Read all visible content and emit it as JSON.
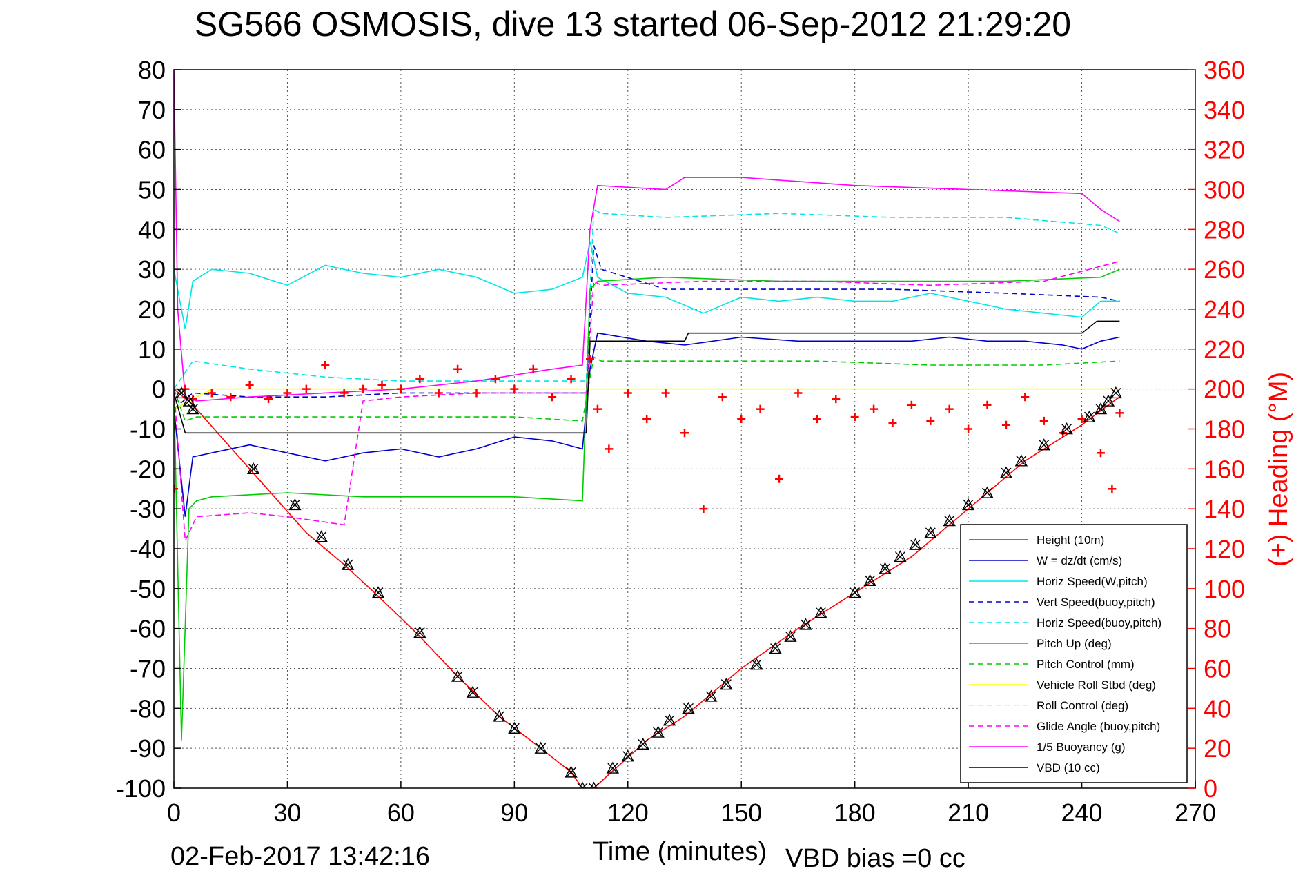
{
  "chart_data": {
    "type": "line",
    "title": "SG566 OSMOSIS, dive 13 started 06-Sep-2012 21:29:20",
    "xlabel": "Time (minutes)",
    "ylabel": "",
    "ylabel_right": "(+) Heading (°M)",
    "xlim": [
      0,
      270
    ],
    "ylim": [
      -100,
      80
    ],
    "ylim_right": [
      0,
      360
    ],
    "xticks": [
      "0",
      "30",
      "60",
      "90",
      "120",
      "150",
      "180",
      "210",
      "240",
      "270"
    ],
    "yticks": [
      "80",
      "70",
      "60",
      "50",
      "40",
      "30",
      "20",
      "10",
      "0",
      "-10",
      "-20",
      "-30",
      "-40",
      "-50",
      "-60",
      "-70",
      "-80",
      "-90",
      "-100"
    ],
    "yticks_right": [
      "360",
      "340",
      "320",
      "300",
      "280",
      "260",
      "240",
      "220",
      "200",
      "180",
      "160",
      "140",
      "120",
      "100",
      "80",
      "60",
      "40",
      "20",
      "0"
    ],
    "grid": true,
    "legend_position": "bottom-right",
    "footer_left": "02-Feb-2017 13:42:16",
    "footer_right": "VBD bias =0 cc",
    "colors": {
      "red": "#ff0000",
      "blue": "#0000cc",
      "cyan": "#00e5e5",
      "green": "#00cc00",
      "yellow": "#ffff00",
      "magenta": "#ff00ff",
      "black": "#000000",
      "right_axis": "#ff0000"
    },
    "series": [
      {
        "name": "Height (10m)",
        "color": "red",
        "style": "solid",
        "x": [
          0,
          5,
          20,
          35,
          45,
          53,
          64,
          75,
          86,
          97,
          105,
          108,
          111,
          118,
          125,
          135,
          150,
          165,
          180,
          195,
          210,
          225,
          240,
          247,
          250
        ],
        "y": [
          0,
          -4,
          -20,
          -36,
          -44,
          -51,
          -61,
          -72,
          -82,
          -90,
          -96,
          -100,
          -100,
          -94,
          -88,
          -82,
          -70,
          -60,
          -51,
          -42,
          -30,
          -18,
          -9,
          -4,
          -2
        ]
      },
      {
        "name": "W = dz/dt (cm/s)",
        "color": "blue",
        "style": "solid",
        "x": [
          0,
          3,
          5,
          10,
          20,
          30,
          40,
          50,
          60,
          70,
          80,
          90,
          100,
          108,
          110,
          112,
          125,
          135,
          150,
          165,
          180,
          195,
          205,
          215,
          225,
          235,
          240,
          245,
          250
        ],
        "y": [
          -5,
          -32,
          -17,
          -16,
          -14,
          -16,
          -18,
          -16,
          -15,
          -17,
          -15,
          -12,
          -13,
          -15,
          5,
          14,
          12,
          11,
          13,
          12,
          12,
          12,
          13,
          12,
          12,
          11,
          10,
          12,
          13
        ]
      },
      {
        "name": "Horiz Speed(W,pitch)",
        "color": "cyan",
        "style": "solid",
        "x": [
          0,
          3,
          5,
          10,
          20,
          30,
          40,
          50,
          60,
          70,
          80,
          90,
          100,
          108,
          110,
          112,
          120,
          130,
          140,
          150,
          160,
          170,
          180,
          190,
          200,
          210,
          220,
          230,
          240,
          245,
          250
        ],
        "y": [
          30,
          15,
          27,
          30,
          29,
          26,
          31,
          29,
          28,
          30,
          28,
          24,
          25,
          28,
          37,
          28,
          24,
          23,
          19,
          23,
          22,
          23,
          22,
          22,
          24,
          22,
          20,
          19,
          18,
          22,
          22
        ]
      },
      {
        "name": "Vert Speed(buoy,pitch)",
        "color": "blue",
        "style": "dashed",
        "x": [
          0,
          5,
          20,
          40,
          60,
          80,
          100,
          109,
          111,
          113,
          130,
          160,
          190,
          220,
          245,
          250
        ],
        "y": [
          -5,
          -1,
          -2,
          -2,
          -1,
          -1,
          -1,
          -1,
          36,
          30,
          25,
          25,
          25,
          24,
          23,
          22
        ]
      },
      {
        "name": "Horiz Speed(buoy,pitch)",
        "color": "cyan",
        "style": "dashed",
        "x": [
          0,
          5,
          20,
          40,
          60,
          80,
          100,
          109,
          111,
          113,
          130,
          160,
          190,
          220,
          245,
          250
        ],
        "y": [
          0,
          7,
          5,
          3,
          2,
          2,
          2,
          2,
          45,
          44,
          43,
          44,
          43,
          43,
          41,
          39
        ]
      },
      {
        "name": "Pitch Up (deg)",
        "color": "green",
        "style": "solid",
        "x": [
          0,
          2,
          4,
          6,
          10,
          30,
          50,
          70,
          90,
          108,
          110,
          112,
          130,
          160,
          190,
          220,
          245,
          250
        ],
        "y": [
          0,
          -88,
          -30,
          -28,
          -27,
          -26,
          -27,
          -27,
          -27,
          -28,
          25,
          27,
          28,
          27,
          27,
          27,
          28,
          30
        ]
      },
      {
        "name": "Pitch Control (mm)",
        "color": "green",
        "style": "dashed",
        "x": [
          0,
          3,
          6,
          30,
          60,
          90,
          108,
          111,
          113,
          140,
          170,
          200,
          230,
          250
        ],
        "y": [
          0,
          -8,
          -7,
          -7,
          -7,
          -7,
          -8,
          8,
          7,
          7,
          7,
          6,
          6,
          7
        ]
      },
      {
        "name": "Vehicle Roll Stbd (deg)",
        "color": "yellow",
        "style": "solid",
        "x": [
          0,
          10,
          20,
          30,
          40,
          50,
          60,
          70,
          80,
          90,
          100,
          110,
          120,
          130,
          140,
          150,
          160,
          170,
          180,
          190,
          200,
          210,
          220,
          230,
          240,
          250
        ],
        "y": [
          -5,
          0,
          0,
          0,
          0,
          0,
          0,
          0,
          0,
          0,
          0,
          0,
          0,
          0,
          0,
          0,
          0,
          0,
          0,
          0,
          0,
          0,
          0,
          0,
          0,
          0
        ]
      },
      {
        "name": "Roll Control (deg)",
        "color": "yellow",
        "style": "dashed",
        "x": [
          0,
          10,
          20,
          30,
          40,
          50,
          60,
          70,
          80,
          90,
          100,
          110,
          120,
          130,
          140,
          150,
          160,
          170,
          180,
          190,
          200,
          210,
          220,
          230,
          240,
          250
        ],
        "y": [
          0,
          0,
          0,
          0,
          0,
          0,
          0,
          0,
          0,
          0,
          0,
          0,
          0,
          0,
          0,
          0,
          0,
          0,
          0,
          0,
          0,
          0,
          0,
          0,
          0,
          0
        ]
      },
      {
        "name": "Glide Angle (buoy,pitch)",
        "color": "magenta",
        "style": "dashed",
        "x": [
          0,
          3,
          6,
          20,
          30,
          45,
          50,
          60,
          80,
          100,
          109,
          111,
          113,
          140,
          170,
          200,
          230,
          250
        ],
        "y": [
          0,
          -38,
          -32,
          -31,
          -32,
          -34,
          -3,
          -2,
          -1,
          -1,
          -1,
          27,
          26,
          27,
          27,
          26,
          27,
          32
        ]
      },
      {
        "name": "1/5 Buoyancy (g)",
        "color": "magenta",
        "style": "solid",
        "x": [
          0,
          1,
          3,
          6,
          20,
          40,
          60,
          80,
          100,
          108,
          110,
          112,
          130,
          135,
          150,
          180,
          210,
          240,
          245,
          250
        ],
        "y": [
          80,
          20,
          -2,
          -3,
          -2,
          -1,
          0,
          2,
          5,
          6,
          40,
          51,
          50,
          53,
          53,
          51,
          50,
          49,
          45,
          42
        ]
      },
      {
        "name": "VBD (10 cc)",
        "color": "black",
        "style": "solid",
        "x": [
          0,
          3,
          5,
          30,
          60,
          90,
          109,
          110,
          111,
          135,
          136,
          170,
          210,
          240,
          244,
          250
        ],
        "y": [
          -1,
          -11,
          -11,
          -11,
          -11,
          -11,
          -11,
          12,
          12,
          12,
          14,
          14,
          14,
          14,
          17,
          17
        ]
      },
      {
        "name": "Heading",
        "color": "red",
        "style": "markers",
        "axis": "right",
        "x": [
          0,
          3,
          5,
          10,
          15,
          20,
          25,
          30,
          35,
          40,
          45,
          50,
          55,
          60,
          65,
          70,
          75,
          80,
          85,
          90,
          95,
          100,
          105,
          110,
          112,
          115,
          120,
          125,
          130,
          135,
          140,
          145,
          150,
          155,
          160,
          165,
          170,
          175,
          180,
          185,
          190,
          195,
          200,
          205,
          210,
          215,
          220,
          225,
          230,
          235,
          240,
          245,
          248,
          250
        ],
        "y": [
          150,
          200,
          195,
          198,
          196,
          202,
          195,
          198,
          200,
          212,
          198,
          200,
          202,
          200,
          205,
          198,
          210,
          198,
          205,
          200,
          210,
          196,
          205,
          215,
          190,
          170,
          198,
          185,
          198,
          178,
          140,
          196,
          185,
          190,
          155,
          198,
          185,
          195,
          186,
          190,
          183,
          192,
          184,
          190,
          180,
          192,
          182,
          196,
          184,
          178,
          185,
          168,
          150,
          188
        ]
      }
    ],
    "depth_markers": {
      "x": [
        2,
        4,
        5,
        21,
        32,
        39,
        46,
        54,
        65,
        75,
        79,
        86,
        90,
        97,
        105,
        108,
        111,
        116,
        120,
        124,
        128,
        131,
        136,
        142,
        146,
        154,
        159,
        163,
        167,
        171,
        180,
        184,
        188,
        192,
        196,
        200,
        205,
        210,
        215,
        220,
        224,
        230,
        236,
        242,
        245,
        247,
        249
      ],
      "y": [
        -1,
        -3,
        -5,
        -20,
        -29,
        -37,
        -44,
        -51,
        -61,
        -72,
        -76,
        -82,
        -85,
        -90,
        -96,
        -100,
        -100,
        -95,
        -92,
        -89,
        -86,
        -83,
        -80,
        -77,
        -74,
        -69,
        -65,
        -62,
        -59,
        -56,
        -51,
        -48,
        -45,
        -42,
        -39,
        -36,
        -33,
        -29,
        -26,
        -21,
        -18,
        -14,
        -10,
        -7,
        -5,
        -3,
        -1
      ]
    }
  }
}
